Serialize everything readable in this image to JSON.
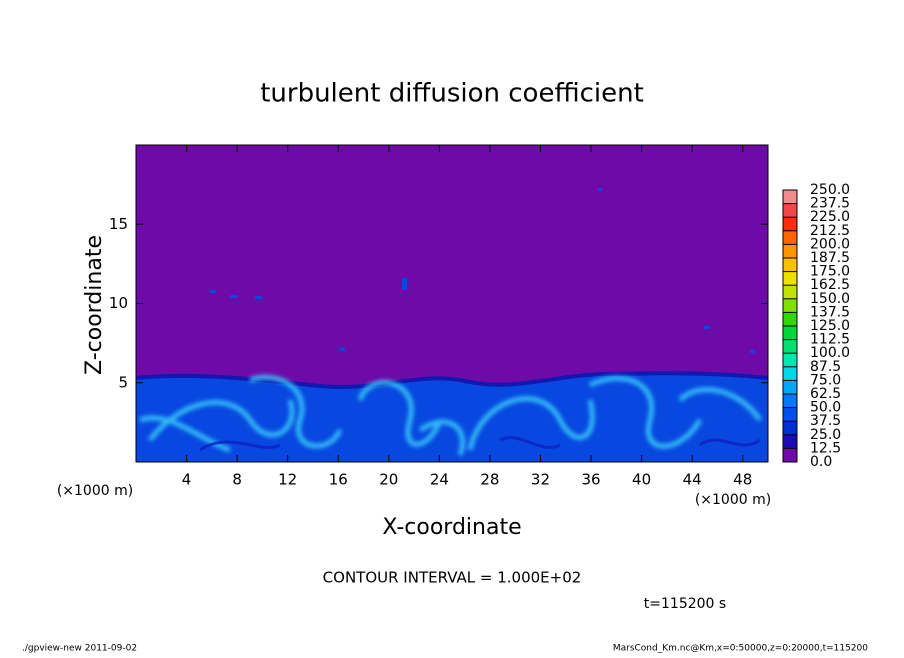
{
  "chart_data": {
    "type": "contour",
    "title": "turbulent diffusion coefficient",
    "x_label": "X-coordinate",
    "y_label": "Z-coordinate",
    "x_unit": "(×1000 m)",
    "y_unit": "(×1000 m)",
    "xlim": [
      0,
      50
    ],
    "ylim": [
      0,
      20
    ],
    "xticks": [
      4,
      8,
      12,
      16,
      20,
      24,
      28,
      32,
      36,
      40,
      44,
      48
    ],
    "yticks": [
      5,
      10,
      15
    ],
    "colorbar": {
      "levels": [
        {
          "value": 0,
          "label": "0.0"
        },
        {
          "value": 12.5,
          "label": "12.5"
        },
        {
          "value": 25,
          "label": "25.0"
        },
        {
          "value": 37.5,
          "label": "37.5"
        },
        {
          "value": 50,
          "label": "50.0"
        },
        {
          "value": 62.5,
          "label": "62.5"
        },
        {
          "value": 75,
          "label": "75.0"
        },
        {
          "value": 87.5,
          "label": "87.5"
        },
        {
          "value": 100,
          "label": "100.0"
        },
        {
          "value": 112.5,
          "label": "112.5"
        },
        {
          "value": 125,
          "label": "125.0"
        },
        {
          "value": 137.5,
          "label": "137.5"
        },
        {
          "value": 150,
          "label": "150.0"
        },
        {
          "value": 162.5,
          "label": "162.5"
        },
        {
          "value": 175,
          "label": "175.0"
        },
        {
          "value": 187.5,
          "label": "187.5"
        },
        {
          "value": 200,
          "label": "200.0"
        },
        {
          "value": 212.5,
          "label": "212.5"
        },
        {
          "value": 225,
          "label": "225.0"
        },
        {
          "value": 237.5,
          "label": "237.5"
        },
        {
          "value": 250,
          "label": "250.0"
        }
      ],
      "colors": [
        "#6e0aa8",
        "#1c0cb4",
        "#0030d4",
        "#0050ee",
        "#0078ff",
        "#00a8f8",
        "#00d8e8",
        "#00e8b0",
        "#00e070",
        "#00d838",
        "#30d800",
        "#80e000",
        "#c0e400",
        "#f0e000",
        "#ffc000",
        "#ff9400",
        "#ff6400",
        "#ff2c10",
        "#f04848",
        "#f08c8c"
      ]
    },
    "contour_interval": "CONTOUR INTERVAL = 1.000E+02",
    "time_label": "t=115200 s",
    "footer_left": "./gpview-new  2011-09-02",
    "footer_right": "MarsCond_Km.nc@Km,x=0:50000,z=0:20000,t=115200"
  }
}
